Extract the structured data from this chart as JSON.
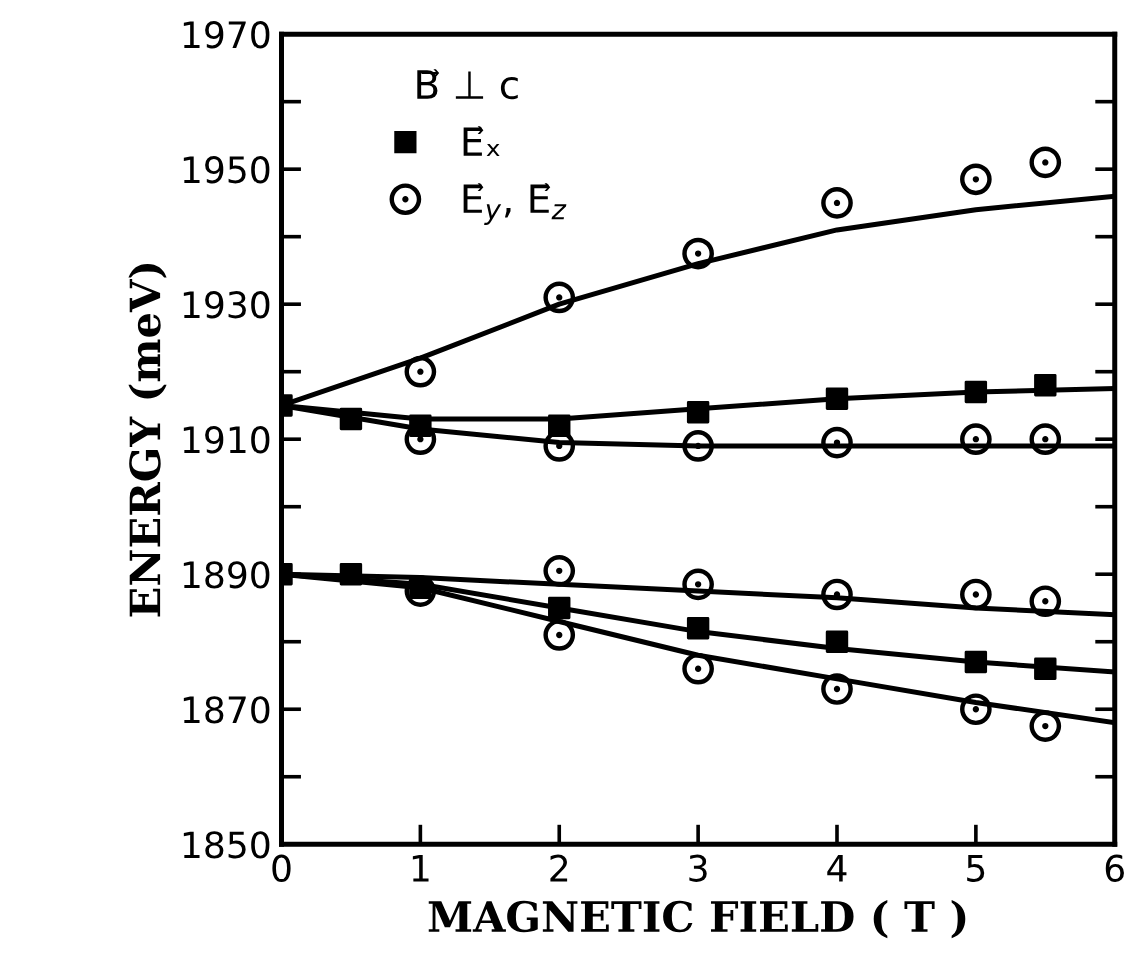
{
  "chart_data": {
    "type": "scatter",
    "xlabel": "MAGNETIC FIELD ( T )",
    "ylabel": "ENERGY (meV)",
    "legend_title": "B⃗ ⊥ c",
    "legend": "top left",
    "grid": false,
    "xlim": [
      0,
      6
    ],
    "xticks": [
      0,
      1,
      2,
      3,
      4,
      5,
      6
    ],
    "ylim": [
      1850,
      1970
    ],
    "yticks": [
      1850,
      {
        "value": 1860,
        "label": null
      },
      1870,
      {
        "value": 1880,
        "label": null
      },
      1890,
      {
        "value": 1900,
        "label": null
      },
      1910,
      {
        "value": 1920,
        "label": null
      },
      1930,
      {
        "value": 1940,
        "label": null
      },
      1950,
      {
        "value": 1960,
        "label": null
      },
      1970
    ],
    "series": [
      {
        "type": "line",
        "color": "#000000",
        "marker": "none",
        "line_style": "solid",
        "x": [
          0,
          1,
          2,
          3,
          4,
          5,
          6
        ],
        "values": [
          1915,
          1922,
          1930,
          1936,
          1941,
          1944,
          1946
        ]
      },
      {
        "type": "line",
        "color": "#000000",
        "marker": "none",
        "line_style": "solid",
        "x": [
          0,
          1,
          2,
          3,
          4,
          5,
          6
        ],
        "values": [
          1915,
          1913,
          1913,
          1914.5,
          1916,
          1917,
          1917.5
        ]
      },
      {
        "type": "line",
        "color": "#000000",
        "marker": "none",
        "line_style": "solid",
        "x": [
          0,
          1,
          2,
          3,
          4,
          5,
          6
        ],
        "values": [
          1915,
          1911.5,
          1909.5,
          1909,
          1909,
          1909,
          1909
        ]
      },
      {
        "type": "line",
        "color": "#000000",
        "marker": "none",
        "line_style": "solid",
        "x": [
          0,
          1,
          2,
          3,
          4,
          5,
          6
        ],
        "values": [
          1890,
          1889.5,
          1888.5,
          1887.5,
          1886.5,
          1885,
          1884
        ]
      },
      {
        "type": "line",
        "color": "#000000",
        "marker": "none",
        "line_style": "solid",
        "x": [
          0,
          1,
          2,
          3,
          4,
          5,
          6
        ],
        "values": [
          1890,
          1888.5,
          1885,
          1881.5,
          1879,
          1877,
          1875.5
        ]
      },
      {
        "type": "line",
        "color": "#000000",
        "marker": "none",
        "line_style": "solid",
        "x": [
          0,
          1,
          2,
          3,
          4,
          5,
          6
        ],
        "values": [
          1890,
          1888,
          1883,
          1878,
          1874.5,
          1871,
          1868
        ]
      },
      {
        "type": "scatter",
        "name": "E⃗ₓ",
        "color": "#000000",
        "marker": "square",
        "x": [
          0,
          0.5,
          1,
          2,
          3,
          4,
          5,
          5.5,
          0,
          0.5,
          1,
          2,
          3,
          4,
          5,
          5.5
        ],
        "values": [
          1915,
          1913,
          1912,
          1912,
          1914,
          1916,
          1917,
          1918,
          1890,
          1890,
          1888,
          1885,
          1882,
          1880,
          1877,
          1876
        ]
      },
      {
        "type": "scatter",
        "name": "E⃗$_{y}$, E⃗$_{z}$",
        "color": "#000000",
        "marker": "circle",
        "x": [
          1,
          2,
          3,
          4,
          5,
          5.5,
          1,
          2,
          3,
          4,
          5,
          5.5,
          2,
          3,
          4,
          5,
          5.5,
          1,
          2,
          3,
          4,
          5,
          5.5
        ],
        "values": [
          1920,
          1931,
          1937.5,
          1945,
          1948.5,
          1951,
          1910,
          1909,
          1909,
          1909.5,
          1910,
          1910,
          1890.5,
          1888.5,
          1887,
          1887,
          1886,
          1887.5,
          1881,
          1876,
          1873,
          1870,
          1867.5
        ]
      }
    ]
  }
}
